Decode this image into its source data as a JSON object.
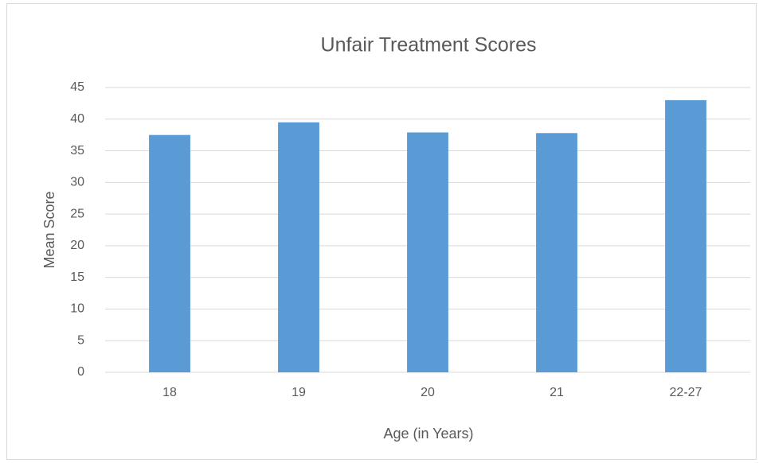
{
  "chart_data": {
    "type": "bar",
    "title": "Unfair Treatment Scores",
    "x_label": "Age (in Years)",
    "y_label": "Mean Score",
    "categories": [
      "18",
      "19",
      "20",
      "21",
      "22-27"
    ],
    "values": [
      37.5,
      39.5,
      37.9,
      37.8,
      43.0
    ],
    "color": "#5b9bd5",
    "ylim": [
      0,
      45
    ],
    "yticks": [
      0,
      5,
      10,
      15,
      20,
      25,
      30,
      35,
      40,
      45
    ],
    "grid": true
  }
}
